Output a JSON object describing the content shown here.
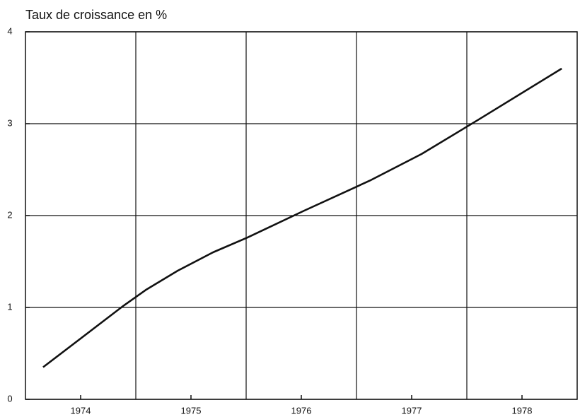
{
  "chart_data": {
    "type": "line",
    "title": "Taux de croissance en %",
    "x": [
      1974.16,
      1974.89,
      1975.09,
      1975.38,
      1975.7,
      1976.01,
      1976.52,
      1977.12,
      1977.59,
      1978.1,
      1978.86
    ],
    "series": [
      {
        "name": "Taux de croissance",
        "color": "#111111",
        "values": [
          0.35,
          1.02,
          1.19,
          1.4,
          1.6,
          1.76,
          2.05,
          2.38,
          2.67,
          3.04,
          3.6
        ]
      }
    ],
    "xlim": [
      1974,
      1979
    ],
    "xticks": [
      {
        "value": 1974.5,
        "label": "1974"
      },
      {
        "value": 1975.5,
        "label": "1975"
      },
      {
        "value": 1976.5,
        "label": "1976"
      },
      {
        "value": 1977.5,
        "label": "1977"
      },
      {
        "value": 1978.5,
        "label": "1978"
      }
    ],
    "xgrid": [
      1975,
      1976,
      1977,
      1978
    ],
    "ylim": [
      0,
      4
    ],
    "yticks": [
      0,
      1,
      2,
      3,
      4
    ],
    "grid": true
  }
}
